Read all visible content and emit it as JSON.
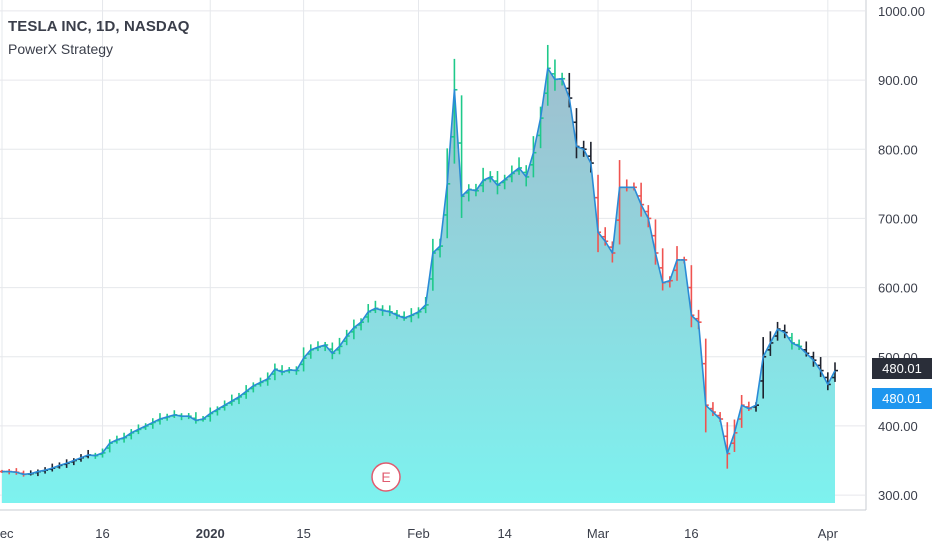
{
  "header": {
    "title": "TESLA INC, 1D, NASDAQ",
    "strategy": "PowerX Strategy"
  },
  "price_tags": {
    "last": "480.01",
    "close": "480.01"
  },
  "earnings_marker": "E",
  "colors": {
    "up": "#1ec98a",
    "down": "#ef5350",
    "neutral": "#1e222d",
    "line": "#2a8bd6",
    "area_top": "#9fbfcf",
    "area_bottom": "#7df2ef",
    "grid": "#e6e8ec",
    "axis_text": "#3a3e4a"
  },
  "chart_data": {
    "type": "line",
    "title": "TESLA INC, 1D, NASDAQ",
    "subtitle": "PowerX Strategy",
    "ylim": [
      290,
      1010
    ],
    "yticks": [
      300,
      400,
      500,
      600,
      700,
      800,
      900,
      1000
    ],
    "ytick_labels": [
      "300.00",
      "400.00",
      "500.00",
      "600.00",
      "700.00",
      "800.00",
      "900.00",
      "1000.00"
    ],
    "xtick_labels": [
      "Dec",
      "16",
      "2020",
      "15",
      "Feb",
      "14",
      "Mar",
      "16",
      "Apr"
    ],
    "xtick_index": [
      0,
      14,
      29,
      42,
      58,
      70,
      83,
      96,
      115
    ],
    "grid": true,
    "series": [
      {
        "close": [
          334,
          334,
          333,
          330,
          331,
          334,
          336,
          339,
          343,
          346,
          350,
          354,
          358,
          357,
          361,
          375,
          380,
          383,
          390,
          395,
          400,
          405,
          410,
          413,
          416,
          414,
          414,
          408,
          410,
          418,
          424,
          430,
          436,
          442,
          450,
          458,
          463,
          468,
          482,
          478,
          481,
          480,
          498,
          510,
          514,
          517,
          505,
          515,
          530,
          542,
          550,
          565,
          570,
          567,
          565,
          560,
          556,
          560,
          565,
          575,
          650,
          660,
          750,
          886,
          732,
          742,
          740,
          755,
          760,
          748,
          756,
          765,
          773,
          760,
          795,
          845,
          917,
          901,
          902,
          874,
          804,
          800,
          780,
          680,
          667,
          650,
          745,
          745,
          745,
          720,
          700,
          650,
          607,
          610,
          640,
          640,
          560,
          550,
          430,
          420,
          410,
          360,
          390,
          430,
          425,
          430,
          500,
          520,
          540,
          535,
          520,
          515,
          505,
          495,
          480,
          460,
          480
        ],
        "signals": [
          "down",
          "down",
          "down",
          "down",
          "neutral",
          "neutral",
          "neutral",
          "neutral",
          "neutral",
          "neutral",
          "neutral",
          "neutral",
          "neutral",
          "up",
          "up",
          "up",
          "up",
          "up",
          "up",
          "up",
          "up",
          "up",
          "up",
          "up",
          "up",
          "up",
          "up",
          "up",
          "up",
          "up",
          "up",
          "up",
          "up",
          "up",
          "up",
          "up",
          "up",
          "up",
          "up",
          "up",
          "up",
          "up",
          "up",
          "up",
          "up",
          "up",
          "up",
          "up",
          "up",
          "up",
          "up",
          "up",
          "up",
          "up",
          "up",
          "up",
          "up",
          "up",
          "up",
          "up",
          "up",
          "up",
          "up",
          "up",
          "up",
          "up",
          "up",
          "up",
          "up",
          "up",
          "up",
          "up",
          "up",
          "up",
          "up",
          "up",
          "up",
          "up",
          "up",
          "neutral",
          "neutral",
          "neutral",
          "neutral",
          "down",
          "down",
          "down",
          "down",
          "down",
          "down",
          "down",
          "down",
          "down",
          "down",
          "down",
          "down",
          "down",
          "down",
          "down",
          "down",
          "down",
          "down",
          "down",
          "down",
          "down",
          "down",
          "neutral",
          "neutral",
          "neutral",
          "neutral",
          "neutral",
          "up",
          "up",
          "neutral",
          "neutral",
          "neutral",
          "neutral",
          "neutral"
        ]
      }
    ]
  }
}
